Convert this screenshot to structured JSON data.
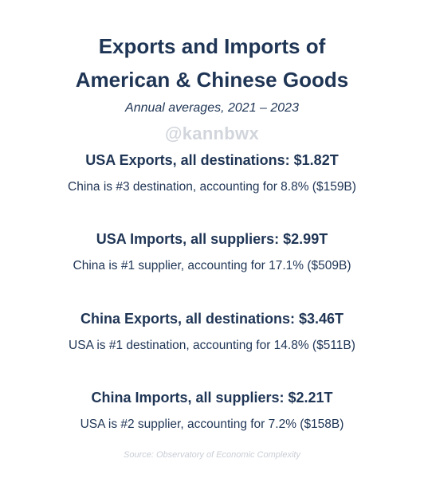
{
  "title": {
    "line1": "Exports and Imports of",
    "line2": "American & Chinese Goods"
  },
  "subtitle": "Annual averages, 2021 – 2023",
  "watermark": "@kannbwx",
  "sections": [
    {
      "heading": "USA Exports, all destinations: $1.82T",
      "detail": "China is #3 destination, accounting for 8.8% ($159B)"
    },
    {
      "heading": "USA Imports, all suppliers: $2.99T",
      "detail": "China is #1 supplier, accounting for 17.1% ($509B)"
    },
    {
      "heading": "China Exports, all destinations: $3.46T",
      "detail": "USA is #1 destination, accounting for 14.8% ($511B)"
    },
    {
      "heading": "China Imports, all suppliers: $2.21T",
      "detail": "USA is #2 supplier, accounting for 7.2% ($158B)"
    }
  ],
  "source": "Source: Observatory of Economic Complexity",
  "colors": {
    "text": "#1f3555",
    "watermark": "#d2d6dc",
    "source": "#c9ced6",
    "background": "#ffffff"
  }
}
